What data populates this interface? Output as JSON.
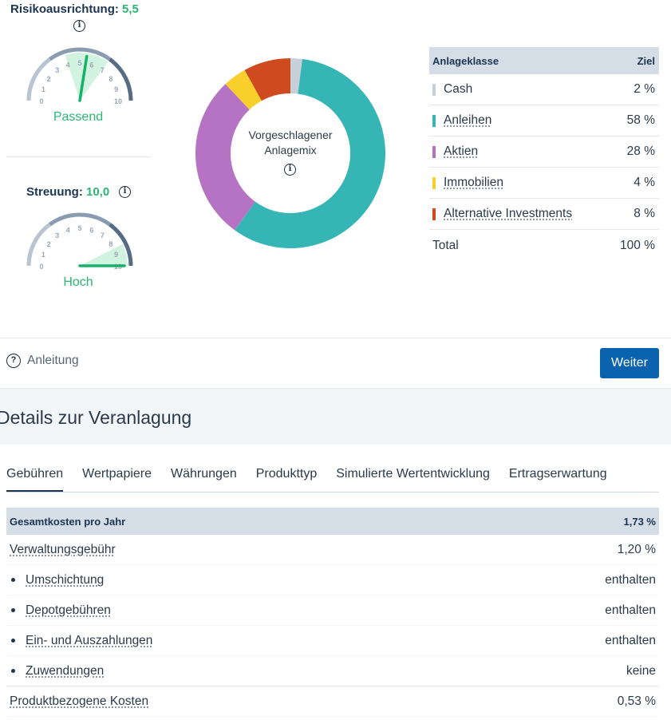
{
  "risk": {
    "label": "Risikoausrichtung:",
    "value": "5,5",
    "score": 5.5,
    "status": "Passend",
    "ticks": [
      "0",
      "1",
      "2",
      "3",
      "4",
      "5",
      "6",
      "7",
      "8",
      "9",
      "10"
    ]
  },
  "spread": {
    "label": "Streuung:",
    "value": "10,0",
    "score": 10.0,
    "status": "Hoch",
    "ticks": [
      "0",
      "1",
      "2",
      "3",
      "4",
      "5",
      "6",
      "7",
      "8",
      "9",
      "10"
    ]
  },
  "donut": {
    "line1": "Vorgeschlagener",
    "line2": "Anlagemix"
  },
  "allocation": {
    "header_class": "Anlageklasse",
    "header_target": "Ziel",
    "rows": [
      {
        "name": "Cash",
        "value": "2 %",
        "percent": 2,
        "color": "#c7d0d9"
      },
      {
        "name": "Anleihen",
        "value": "58 %",
        "percent": 58,
        "color": "#35b6b4"
      },
      {
        "name": "Aktien",
        "value": "28 %",
        "percent": 28,
        "color": "#b672c3"
      },
      {
        "name": "Immobilien",
        "value": "4 %",
        "percent": 4,
        "color": "#f9cf2c"
      },
      {
        "name": "Alternative Investments",
        "value": "8 %",
        "percent": 8,
        "color": "#d04a1f"
      }
    ],
    "total_label": "Total",
    "total_value": "100 %"
  },
  "footer": {
    "help_label": "Anleitung",
    "next_label": "Weiter"
  },
  "details": {
    "title": "Details zur Veranlagung",
    "tabs": [
      "Gebühren",
      "Wertpapiere",
      "Währungen",
      "Produkttyp",
      "Simulierte Wertentwicklung",
      "Ertragserwartung"
    ],
    "costs": {
      "head_label": "Gesamtkosten pro Jahr",
      "head_value": "1,73 %",
      "fee_label": "Verwaltungsgebühr",
      "fee_value": "1,20 %",
      "sub_items": [
        {
          "label": "Umschichtung",
          "value": "enthalten"
        },
        {
          "label": "Depotgebühren",
          "value": "enthalten"
        },
        {
          "label": "Ein- und Auszahlungen",
          "value": "enthalten"
        },
        {
          "label": "Zuwendungen",
          "value": "keine"
        }
      ],
      "product_label": "Produktbezogene Kosten",
      "product_value": "0,53 %"
    }
  },
  "colors": {
    "accent_green": "#2bb673",
    "primary_blue": "#0b63b0",
    "header_bg": "#d5dde6"
  }
}
